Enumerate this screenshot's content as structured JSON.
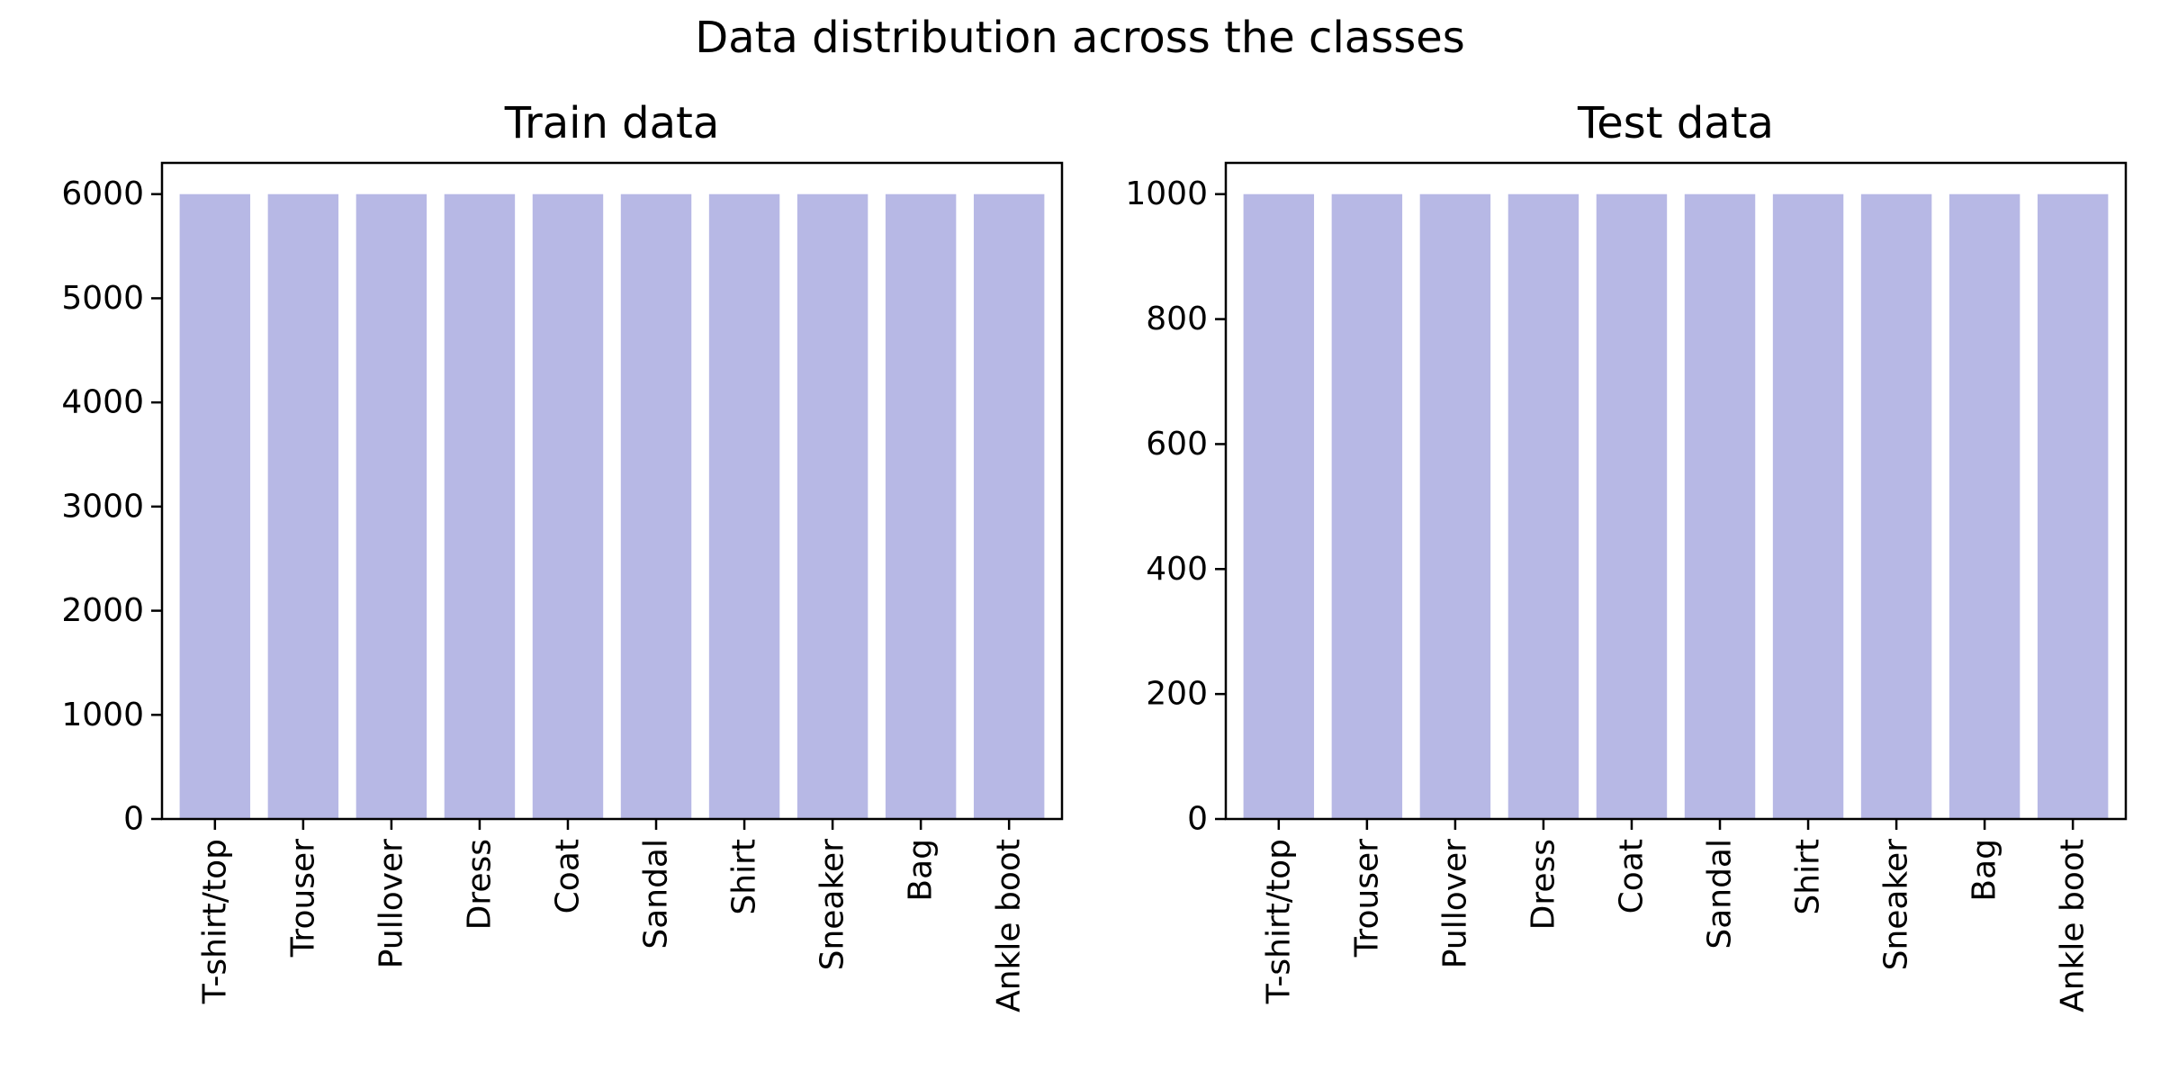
{
  "figure": {
    "suptitle": "Data distribution across the classes"
  },
  "chart_data": [
    {
      "type": "bar",
      "title": "Train data",
      "xlabel": "",
      "ylabel": "",
      "categories": [
        "T-shirt/top",
        "Trouser",
        "Pullover",
        "Dress",
        "Coat",
        "Sandal",
        "Shirt",
        "Sneaker",
        "Bag",
        "Ankle boot"
      ],
      "values": [
        6000,
        6000,
        6000,
        6000,
        6000,
        6000,
        6000,
        6000,
        6000,
        6000
      ],
      "ylim": [
        0,
        6300
      ],
      "yticks": [
        0,
        1000,
        2000,
        3000,
        4000,
        5000,
        6000
      ],
      "grid": false,
      "legend": "none",
      "bar_color": "#b7b8e5"
    },
    {
      "type": "bar",
      "title": "Test data",
      "xlabel": "",
      "ylabel": "",
      "categories": [
        "T-shirt/top",
        "Trouser",
        "Pullover",
        "Dress",
        "Coat",
        "Sandal",
        "Shirt",
        "Sneaker",
        "Bag",
        "Ankle boot"
      ],
      "values": [
        1000,
        1000,
        1000,
        1000,
        1000,
        1000,
        1000,
        1000,
        1000,
        1000
      ],
      "ylim": [
        0,
        1050
      ],
      "yticks": [
        0,
        200,
        400,
        600,
        800,
        1000
      ],
      "grid": false,
      "legend": "none",
      "bar_color": "#b7b8e5"
    }
  ]
}
